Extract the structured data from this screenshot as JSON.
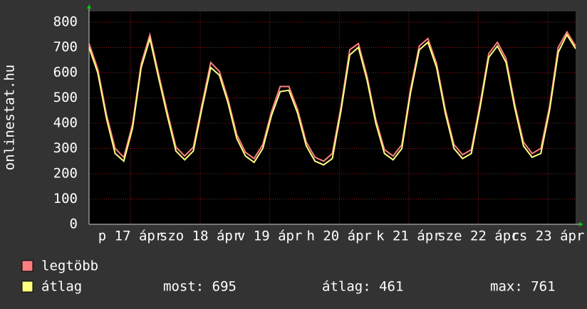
{
  "chart_data": {
    "type": "line",
    "ylabel": "onlinestat.hu",
    "x": [
      0,
      0.125,
      0.25,
      0.375,
      0.5,
      0.625,
      0.75,
      0.875,
      1,
      1.125,
      1.25,
      1.375,
      1.5,
      1.625,
      1.75,
      1.875,
      2,
      2.125,
      2.25,
      2.375,
      2.5,
      2.625,
      2.75,
      2.875,
      3,
      3.125,
      3.25,
      3.375,
      3.5,
      3.625,
      3.75,
      3.875,
      4,
      4.125,
      4.25,
      4.375,
      4.5,
      4.625,
      4.75,
      4.875,
      5,
      5.125,
      5.25,
      5.375,
      5.5,
      5.625,
      5.75,
      5.875,
      6,
      6.125,
      6.25,
      6.375,
      6.5,
      6.625,
      6.75,
      6.875,
      7
    ],
    "series": [
      {
        "name": "legtöbb",
        "color": "#ff7f7f",
        "values": [
          715,
          615,
          435,
          300,
          265,
          395,
          635,
          750,
          595,
          445,
          305,
          270,
          305,
          475,
          640,
          605,
          495,
          355,
          285,
          260,
          315,
          445,
          545,
          545,
          455,
          325,
          265,
          250,
          280,
          465,
          690,
          715,
          585,
          415,
          295,
          270,
          315,
          535,
          705,
          735,
          635,
          455,
          315,
          275,
          295,
          475,
          675,
          720,
          655,
          475,
          325,
          280,
          300,
          465,
          700,
          761,
          705
        ]
      },
      {
        "name": "átlag",
        "color": "#ffff7f",
        "values": [
          700,
          600,
          420,
          280,
          250,
          380,
          620,
          735,
          580,
          430,
          290,
          255,
          290,
          460,
          620,
          590,
          480,
          340,
          270,
          245,
          300,
          430,
          525,
          530,
          440,
          310,
          250,
          235,
          260,
          450,
          670,
          700,
          570,
          400,
          280,
          255,
          300,
          520,
          690,
          720,
          620,
          440,
          300,
          260,
          280,
          460,
          660,
          705,
          640,
          460,
          310,
          265,
          280,
          450,
          680,
          750,
          695
        ]
      }
    ],
    "xlim": [
      0,
      7
    ],
    "xticks": [
      {
        "value": 0.6,
        "label": "p 17 ápr"
      },
      {
        "value": 1.6,
        "label": "szo 18 ápr"
      },
      {
        "value": 2.6,
        "label": "v 19 ápr"
      },
      {
        "value": 3.6,
        "label": "h 20 ápr"
      },
      {
        "value": 4.6,
        "label": "k 21 ápr"
      },
      {
        "value": 5.6,
        "label": "sze 22 ápr"
      },
      {
        "value": 6.6,
        "label": "cs 23 ápr"
      }
    ],
    "ylim": [
      0,
      800
    ],
    "yticks": [
      0,
      100,
      200,
      300,
      400,
      500,
      600,
      700,
      800
    ],
    "grid": true,
    "stats": [
      "most: 695",
      "átlag: 461",
      "max: 761"
    ]
  }
}
